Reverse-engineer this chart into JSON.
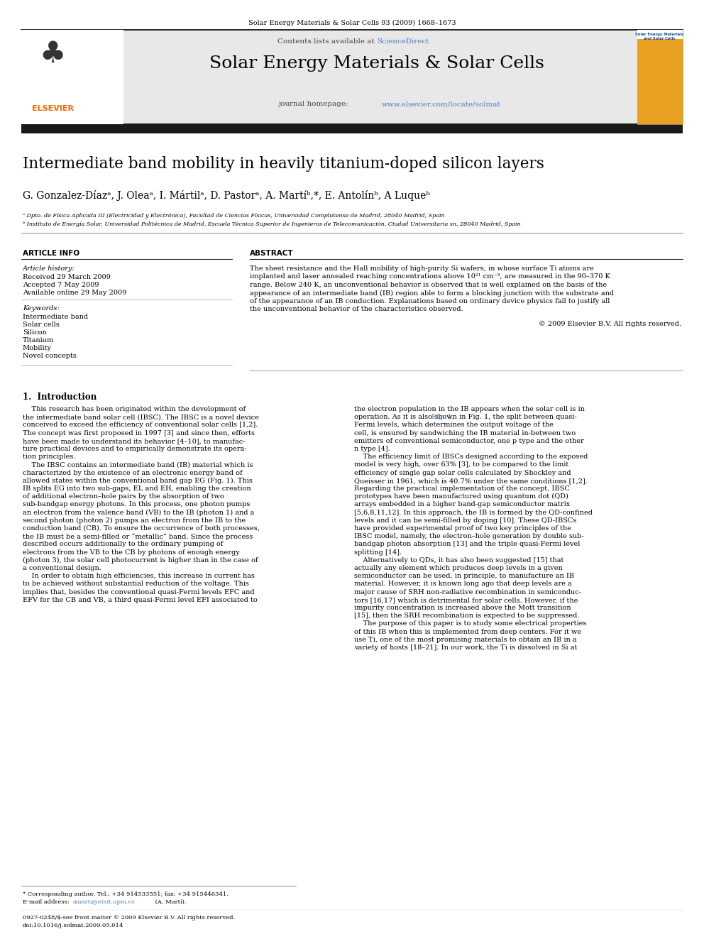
{
  "page_width": 9.92,
  "page_height": 13.23,
  "background_color": "#ffffff",
  "journal_header_text": "Solar Energy Materials & Solar Cells 93 (2009) 1668–1673",
  "journal_header_color": "#000000",
  "header_bg_color": "#e8e8e8",
  "header_title": "Solar Energy Materials & Solar Cells",
  "sciencedirect_color": "#4a7ebf",
  "journal_url_color": "#4a7ebf",
  "elsevier_text": "ELSEVIER",
  "elsevier_color": "#ff6600",
  "article_title": "Intermediate band mobility in heavily titanium-doped silicon layers",
  "authors": "G. Gonzalez-Díazᵃ, J. Oleaᵃ, I. Mártilᵃ, D. Pastorᵃ, A. Martíᵇ,*, E. Antolínᵇ, A Luqueᵇ",
  "affil_a": "ᵃ Dpto. de Física Aplicada III (Electricidad y Electrónica), Facultad de Ciencias Físicas, Universidad Complutense de Madrid, 28040 Madrid, Spain",
  "affil_b": "ᵇ Instituto de Energía Solar, Universidad Politécnica de Madrid, Escuela Técnica Superior de Ingenieros de Telecomunicación, Ciudad Universitaria sn, 28040 Madrid, Spain",
  "section_article_info": "ARTICLE INFO",
  "section_abstract": "ABSTRACT",
  "article_history_label": "Article history:",
  "received": "Received 29 March 2009",
  "accepted": "Accepted 7 May 2009",
  "available": "Available online 29 May 2009",
  "keywords_label": "Keywords:",
  "keywords": [
    "Intermediate band",
    "Solar cells",
    "Silicon",
    "Titanium",
    "Mobility",
    "Novel concepts"
  ],
  "abstract_lines": [
    "The sheet resistance and the Hall mobility of high-purity Si wafers, in whose surface Ti atoms are",
    "implanted and laser annealed reaching concentrations above 10²¹ cm⁻³, are measured in the 90–370 K",
    "range. Below 240 K, an unconventional behavior is observed that is well explained on the basis of the",
    "appearance of an intermediate band (IB) region able to form a blocking junction with the substrate and",
    "of the appearance of an IB conduction. Explanations based on ordinary device physics fail to justify all",
    "the unconventional behavior of the characteristics observed."
  ],
  "copyright": "© 2009 Elsevier B.V. All rights reserved.",
  "intro_heading": "1.  Introduction",
  "intro_col1_lines": [
    "    This research has been originated within the development of",
    "the intermediate band solar cell (IBSC). The IBSC is a novel device",
    "conceived to exceed the efficiency of conventional solar cells [1,2].",
    "The concept was first proposed in 1997 [3] and since then, efforts",
    "have been made to understand its behavior [4–10], to manufac-",
    "ture practical devices and to empirically demonstrate its opera-",
    "tion principles.",
    "    The IBSC contains an intermediate band (IB) material which is",
    "characterized by the existence of an electronic energy band of",
    "allowed states within the conventional band gap EG (Fig. 1). This",
    "IB splits EG into two sub-gaps, EL and EH, enabling the creation",
    "of additional electron–hole pairs by the absorption of two",
    "sub-bandgap energy photons. In this process, one photon pumps",
    "an electron from the valence band (VB) to the IB (photon 1) and a",
    "second photon (photon 2) pumps an electron from the IB to the",
    "conduction band (CB). To ensure the occurrence of both processes,",
    "the IB must be a semi-filled or “metallic” band. Since the process",
    "described occurs additionally to the ordinary pumping of",
    "electrons from the VB to the CB by photons of enough energy",
    "(photon 3), the solar cell photocurrent is higher than in the case of",
    "a conventional design.",
    "    In order to obtain high efficiencies, this increase in current has",
    "to be achieved without substantial reduction of the voltage. This",
    "implies that, besides the conventional quasi-Fermi levels EFC and",
    "EFV for the CB and VB, a third quasi-Fermi level EFI associated to"
  ],
  "intro_col2_lines": [
    "the electron population in the IB appears when the solar cell is in",
    "operation. As it is also shown in Fig. 1, the split between quasi-",
    "Fermi levels, which determines the output voltage of the",
    "cell, is ensured by sandwiching the IB material in-between two",
    "emitters of conventional semiconductor, one p type and the other",
    "n type [4].",
    "    The efficiency limit of IBSCs designed according to the exposed",
    "model is very high, over 63% [3], to be compared to the limit",
    "efficiency of single gap solar cells calculated by Shockley and",
    "Queisser in 1961, which is 40.7% under the same conditions [1,2].",
    "Regarding the practical implementation of the concept, IBSC",
    "prototypes have been manufactured using quantum dot (QD)",
    "arrays embedded in a higher band-gap semiconductor matrix",
    "[5,6,8,11,12]. In this approach, the IB is formed by the QD-confined",
    "levels and it can be semi-filled by doping [10]. These QD-IBSCs",
    "have provided experimental proof of two key principles of the",
    "IBSC model, namely, the electron–hole generation by double sub-",
    "bandgap photon absorption [13] and the triple quasi-Fermi level",
    "splitting [14].",
    "    Alternatively to QDs, it has also been suggested [15] that",
    "actually any element which produces deep levels in a given",
    "semiconductor can be used, in principle, to manufacture an IB",
    "material. However, it is known long ago that deep levels are a",
    "major cause of SRH non-radiative recombination in semiconduc-",
    "tors [16,17] which is detrimental for solar cells. However, if the",
    "impurity concentration is increased above the Mott transition",
    "[15], then the SRH recombination is expected to be suppressed.",
    "    The purpose of this paper is to study some electrical properties",
    "of this IB when this is implemented from deep centers. For it we",
    "use Ti, one of the most promising materials to obtain an IB in a",
    "variety of hosts [18–21]. In our work, the Ti is dissolved in Si at"
  ],
  "footer_line1": "* Corresponding author. Tel.: +34 914533551; fax: +34 915446341.",
  "footer_line2_pre": "E-mail address: ",
  "footer_email": "amarti@etsit.upm.es",
  "footer_line2_post": " (A. Martí).",
  "footer_bottom1": "0927-0248/$-see front matter © 2009 Elsevier B.V. All rights reserved.",
  "footer_bottom2": "doi:10.1016/j.solmat.2009.05.014",
  "text_color": "#000000",
  "link_color": "#4a7ebf"
}
